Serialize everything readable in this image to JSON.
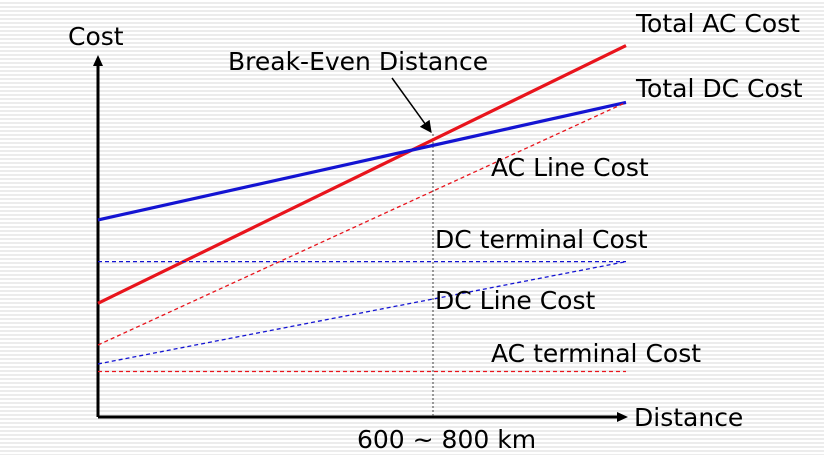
{
  "chart_data": {
    "type": "line",
    "ylabel": "Cost",
    "xlabel": "Distance",
    "break_even": {
      "label": "Break-Even Distance",
      "x_label": "600 ~ 800 km"
    },
    "series": [
      {
        "name": "Total AC Cost",
        "color": "#e8141c",
        "style": "solid",
        "start": 0.3,
        "end": 0.98
      },
      {
        "name": "Total DC Cost",
        "color": "#1414d2",
        "style": "solid",
        "start": 0.52,
        "end": 0.83
      },
      {
        "name": "AC Line Cost",
        "color": "#e8141c",
        "style": "dashed",
        "start": 0.19,
        "end": 0.83
      },
      {
        "name": "DC terminal Cost",
        "color": "#1414d2",
        "style": "dashed",
        "start": 0.41,
        "end": 0.41
      },
      {
        "name": "DC Line Cost",
        "color": "#1414d2",
        "style": "dashed",
        "start": 0.14,
        "end": 0.41
      },
      {
        "name": "AC terminal Cost",
        "color": "#e8141c",
        "style": "dashed",
        "start": 0.12,
        "end": 0.12
      }
    ]
  }
}
